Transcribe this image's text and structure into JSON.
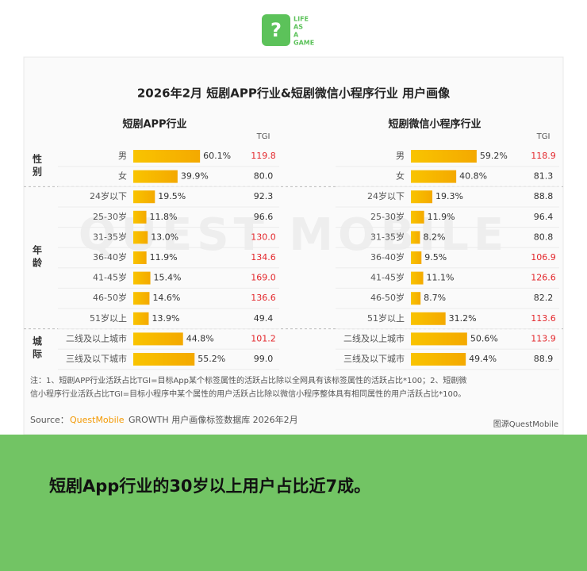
{
  "header": {
    "logo": [
      "LIFE",
      "AS",
      "A",
      "GAME"
    ]
  },
  "infographic": {
    "title": "2026年2月 短剧APP行业&短剧微信小程序行业 用户画像",
    "watermark": "QUEST MOBILE",
    "sections": [
      "性别",
      "年龄",
      "城际"
    ],
    "notes": [
      "注：1、短剧APP行业活跃占比TGI=目标App某个标签属性的活跃占比除以全网具有该标签属性的活跃占比*100；2、短剧微",
      "信小程序行业活跃占比TGI=目标小程序中某个属性的用户活跃占比除以微信小程序整体具有相同属性的用户活跃占比*100。"
    ],
    "source": {
      "prefix": "Source：",
      "brand": "QuestMobile",
      "rest": "GROWTH 用户画像标签数据库 2026年2月"
    },
    "credit": "图源QuestMobile"
  },
  "chart_data": [
    {
      "type": "bar",
      "title": "短剧APP行业",
      "tgi_label": "TGI",
      "color": "#f7b500",
      "highlight_color": "#e3262b",
      "sections": [
        {
          "categories": [
            "男",
            "女"
          ],
          "values": [
            60.1,
            39.9
          ],
          "value_labels": [
            "60.1%",
            "39.9%"
          ],
          "tgi": [
            119.8,
            80
          ],
          "tgi_labels": [
            "119.8",
            "80.0"
          ]
        },
        {
          "categories": [
            "24岁以下",
            "25-30岁",
            "31-35岁",
            "36-40岁",
            "41-45岁",
            "46-50岁",
            "51岁以上"
          ],
          "values": [
            19.5,
            11.8,
            13,
            11.9,
            15.4,
            14.6,
            13.9
          ],
          "value_labels": [
            "19.5%",
            "11.8%",
            "13.0%",
            "11.9%",
            "15.4%",
            "14.6%",
            "13.9%"
          ],
          "tgi": [
            92.3,
            96.6,
            130,
            134.6,
            169,
            136.6,
            49.4
          ],
          "tgi_labels": [
            "92.3",
            "96.6",
            "130.0",
            "134.6",
            "169.0",
            "136.6",
            "49.4"
          ]
        },
        {
          "categories": [
            "二线及以上城市",
            "三线及以下城市"
          ],
          "values": [
            44.8,
            55.2
          ],
          "value_labels": [
            "44.8%",
            "55.2%"
          ],
          "tgi": [
            101.2,
            99
          ],
          "tgi_labels": [
            "101.2",
            "99.0"
          ]
        }
      ]
    },
    {
      "type": "bar",
      "title": "短剧微信小程序行业",
      "tgi_label": "TGI",
      "color": "#f7b500",
      "highlight_color": "#e3262b",
      "sections": [
        {
          "categories": [
            "男",
            "女"
          ],
          "values": [
            59.2,
            40.8
          ],
          "value_labels": [
            "59.2%",
            "40.8%"
          ],
          "tgi": [
            118.9,
            81.3
          ],
          "tgi_labels": [
            "118.9",
            "81.3"
          ]
        },
        {
          "categories": [
            "24岁以下",
            "25-30岁",
            "31-35岁",
            "36-40岁",
            "41-45岁",
            "46-50岁",
            "51岁以上"
          ],
          "values": [
            19.3,
            11.9,
            8.2,
            9.5,
            11.1,
            8.7,
            31.2
          ],
          "value_labels": [
            "19.3%",
            "11.9%",
            "8.2%",
            "9.5%",
            "11.1%",
            "8.7%",
            "31.2%"
          ],
          "tgi": [
            88.8,
            96.4,
            80.8,
            106.9,
            126.6,
            82.2,
            113.6
          ],
          "tgi_labels": [
            "88.8",
            "96.4",
            "80.8",
            "106.9",
            "126.6",
            "82.2",
            "113.6"
          ]
        },
        {
          "categories": [
            "二线及以上城市",
            "三线及以下城市"
          ],
          "values": [
            50.6,
            49.4
          ],
          "value_labels": [
            "50.6%",
            "49.4%"
          ],
          "tgi": [
            113.9,
            88.9
          ],
          "tgi_labels": [
            "113.9",
            "88.9"
          ]
        }
      ]
    }
  ],
  "caption": "短剧App行业的30岁以上用户占比近7成。"
}
